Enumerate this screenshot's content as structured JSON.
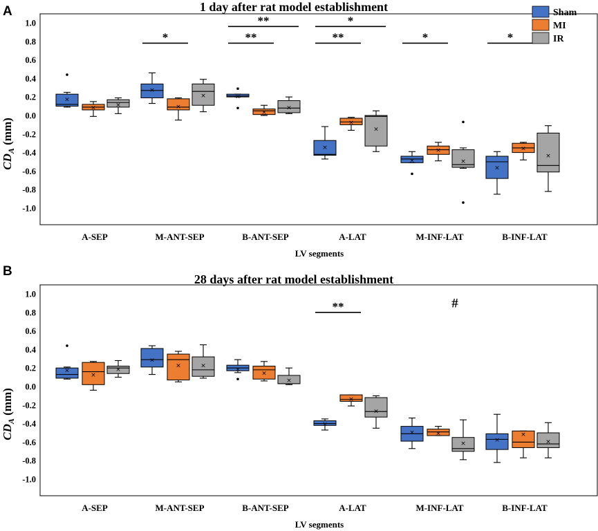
{
  "legend": [
    {
      "name": "Sham",
      "color": "#4472C4"
    },
    {
      "name": "MI",
      "color": "#ED7D31"
    },
    {
      "name": "IR",
      "color": "#A5A5A5"
    }
  ],
  "chart_data": [
    {
      "type": "box",
      "panel_label": "A",
      "title": "1 day after rat model establishment",
      "xlabel": "LV segments",
      "ylabel": "CD",
      "ylabel_sub": "A",
      "ylabel_unit": " (mm)",
      "ylim": [
        -1.2,
        1.0
      ],
      "yticks": [
        "1.0",
        "0.8",
        "0.6",
        "0.4",
        "0.2",
        "0.0",
        "-0.2",
        "-0.4",
        "-0.6",
        "-0.8",
        "-1.0"
      ],
      "categories": [
        "A-SEP",
        "M-ANT-SEP",
        "B-ANT-SEP",
        "A-LAT",
        "M-INF-LAT",
        "B-INF-LAT"
      ],
      "series": [
        {
          "name": "Sham",
          "boxes": [
            {
              "min": 0.09,
              "q1": 0.1,
              "median": 0.12,
              "q3": 0.23,
              "max": 0.25,
              "mean": 0.18,
              "outliers": [
                0.44
              ]
            },
            {
              "min": 0.13,
              "q1": 0.19,
              "median": 0.27,
              "q3": 0.34,
              "max": 0.46,
              "mean": 0.28,
              "outliers": []
            },
            {
              "min": 0.2,
              "q1": 0.2,
              "median": 0.21,
              "q3": 0.23,
              "max": 0.23,
              "mean": 0.21,
              "outliers": [
                0.29,
                0.08
              ]
            },
            {
              "min": -0.47,
              "q1": -0.43,
              "median": -0.42,
              "q3": -0.27,
              "max": -0.12,
              "mean": -0.34,
              "outliers": []
            },
            {
              "min": -0.51,
              "q1": -0.51,
              "median": -0.47,
              "q3": -0.44,
              "max": -0.39,
              "mean": -0.48,
              "outliers": [
                -0.63
              ]
            },
            {
              "min": -0.85,
              "q1": -0.68,
              "median": -0.5,
              "q3": -0.44,
              "max": -0.39,
              "mean": -0.56,
              "outliers": []
            }
          ]
        },
        {
          "name": "MI",
          "boxes": [
            {
              "min": -0.01,
              "q1": 0.06,
              "median": 0.09,
              "q3": 0.12,
              "max": 0.15,
              "mean": 0.09,
              "outliers": []
            },
            {
              "min": -0.05,
              "q1": 0.06,
              "median": 0.09,
              "q3": 0.18,
              "max": 0.19,
              "mean": 0.1,
              "outliers": []
            },
            {
              "min": 0.0,
              "q1": 0.01,
              "median": 0.05,
              "q3": 0.07,
              "max": 0.11,
              "mean": 0.04,
              "outliers": []
            },
            {
              "min": -0.16,
              "q1": -0.1,
              "median": -0.07,
              "q3": -0.03,
              "max": -0.02,
              "mean": -0.07,
              "outliers": []
            },
            {
              "min": -0.49,
              "q1": -0.42,
              "median": -0.37,
              "q3": -0.33,
              "max": -0.29,
              "mean": -0.37,
              "outliers": []
            },
            {
              "min": -0.48,
              "q1": -0.4,
              "median": -0.35,
              "q3": -0.3,
              "max": -0.29,
              "mean": -0.35,
              "outliers": []
            }
          ]
        },
        {
          "name": "IR",
          "boxes": [
            {
              "min": 0.02,
              "q1": 0.09,
              "median": 0.14,
              "q3": 0.17,
              "max": 0.19,
              "mean": 0.12,
              "outliers": []
            },
            {
              "min": 0.04,
              "q1": 0.11,
              "median": 0.26,
              "q3": 0.34,
              "max": 0.39,
              "mean": 0.22,
              "outliers": []
            },
            {
              "min": 0.02,
              "q1": 0.03,
              "median": 0.08,
              "q3": 0.16,
              "max": 0.2,
              "mean": 0.09,
              "outliers": []
            },
            {
              "min": -0.39,
              "q1": -0.33,
              "median": -0.01,
              "q3": 0.0,
              "max": 0.05,
              "mean": -0.14,
              "outliers": []
            },
            {
              "min": -0.57,
              "q1": -0.56,
              "median": -0.53,
              "q3": -0.37,
              "max": -0.35,
              "mean": -0.49,
              "outliers": [
                -0.07,
                -0.94
              ]
            },
            {
              "min": -0.82,
              "q1": -0.61,
              "median": -0.54,
              "q3": -0.19,
              "max": -0.11,
              "mean": -0.43,
              "outliers": []
            }
          ]
        }
      ],
      "annotations": [
        {
          "text": "*",
          "category": 1,
          "from": 0,
          "to": 1,
          "y": 0.78
        },
        {
          "text": "**",
          "category": 2,
          "from": 0,
          "to": 1,
          "y": 0.78
        },
        {
          "text": "**",
          "category": 2,
          "from": 0,
          "to": 2,
          "y": 0.96
        },
        {
          "text": "**",
          "category": 3,
          "from": 0,
          "to": 1,
          "y": 0.78
        },
        {
          "text": "*",
          "category": 3,
          "from": 0,
          "to": 2,
          "y": 0.96
        },
        {
          "text": "*",
          "category": 4,
          "from": 0,
          "to": 1,
          "y": 0.78
        },
        {
          "text": "*",
          "category": 5,
          "from": 0,
          "to": 1,
          "y": 0.78
        }
      ]
    },
    {
      "type": "box",
      "panel_label": "B",
      "title": "28 days after rat model establishment",
      "xlabel": "LV segments",
      "ylabel": "CD",
      "ylabel_sub": "A",
      "ylabel_unit": " (mm)",
      "ylim": [
        -1.2,
        1.0
      ],
      "yticks": [
        "1.0",
        "0.8",
        "0.6",
        "0.4",
        "0.2",
        "0.0",
        "-0.2",
        "-0.4",
        "-0.6",
        "-0.8",
        "-1.0"
      ],
      "categories": [
        "A-SEP",
        "M-ANT-SEP",
        "B-ANT-SEP",
        "A-LAT",
        "M-INF-LAT",
        "B-INF-LAT"
      ],
      "series": [
        {
          "name": "Sham",
          "boxes": [
            {
              "min": 0.08,
              "q1": 0.09,
              "median": 0.13,
              "q3": 0.2,
              "max": 0.21,
              "mean": 0.18,
              "outliers": [
                0.44
              ]
            },
            {
              "min": 0.13,
              "q1": 0.21,
              "median": 0.29,
              "q3": 0.41,
              "max": 0.44,
              "mean": 0.29,
              "outliers": []
            },
            {
              "min": 0.15,
              "q1": 0.17,
              "median": 0.2,
              "q3": 0.23,
              "max": 0.29,
              "mean": 0.19,
              "outliers": [
                0.08
              ]
            },
            {
              "min": -0.47,
              "q1": -0.42,
              "median": -0.4,
              "q3": -0.37,
              "max": -0.35,
              "mean": -0.4,
              "outliers": []
            },
            {
              "min": -0.67,
              "q1": -0.59,
              "median": -0.51,
              "q3": -0.43,
              "max": -0.34,
              "mean": -0.49,
              "outliers": []
            },
            {
              "min": -0.82,
              "q1": -0.68,
              "median": -0.57,
              "q3": -0.51,
              "max": -0.3,
              "mean": -0.57,
              "outliers": []
            }
          ]
        },
        {
          "name": "MI",
          "boxes": [
            {
              "min": -0.04,
              "q1": 0.02,
              "median": 0.16,
              "q3": 0.26,
              "max": 0.27,
              "mean": 0.13,
              "outliers": []
            },
            {
              "min": 0.05,
              "q1": 0.07,
              "median": 0.29,
              "q3": 0.35,
              "max": 0.38,
              "mean": 0.23,
              "outliers": []
            },
            {
              "min": 0.06,
              "q1": 0.08,
              "median": 0.18,
              "q3": 0.22,
              "max": 0.27,
              "mean": 0.15,
              "outliers": []
            },
            {
              "min": -0.21,
              "q1": -0.16,
              "median": -0.14,
              "q3": -0.09,
              "max": -0.09,
              "mean": -0.13,
              "outliers": []
            },
            {
              "min": -0.53,
              "q1": -0.53,
              "median": -0.49,
              "q3": -0.46,
              "max": -0.43,
              "mean": -0.5,
              "outliers": []
            },
            {
              "min": -0.77,
              "q1": -0.66,
              "median": -0.6,
              "q3": -0.48,
              "max": -0.48,
              "mean": -0.51,
              "outliers": []
            }
          ]
        },
        {
          "name": "IR",
          "boxes": [
            {
              "min": 0.1,
              "q1": 0.14,
              "median": 0.2,
              "q3": 0.22,
              "max": 0.28,
              "mean": 0.19,
              "outliers": []
            },
            {
              "min": 0.09,
              "q1": 0.11,
              "median": 0.18,
              "q3": 0.32,
              "max": 0.45,
              "mean": 0.23,
              "outliers": []
            },
            {
              "min": 0.02,
              "q1": 0.03,
              "median": 0.03,
              "q3": 0.12,
              "max": 0.2,
              "mean": 0.07,
              "outliers": []
            },
            {
              "min": -0.45,
              "q1": -0.33,
              "median": -0.27,
              "q3": -0.12,
              "max": -0.1,
              "mean": -0.26,
              "outliers": []
            },
            {
              "min": -0.79,
              "q1": -0.7,
              "median": -0.67,
              "q3": -0.55,
              "max": -0.36,
              "mean": -0.61,
              "outliers": []
            },
            {
              "min": -0.77,
              "q1": -0.66,
              "median": -0.62,
              "q3": -0.5,
              "max": -0.39,
              "mean": -0.59,
              "outliers": []
            }
          ]
        }
      ],
      "annotations": [
        {
          "text": "**",
          "category": 3,
          "from": 0,
          "to": 1,
          "y": 0.8
        },
        {
          "text": "#",
          "category": 4,
          "from": -1,
          "to": -1,
          "y": 0.9
        }
      ]
    }
  ]
}
